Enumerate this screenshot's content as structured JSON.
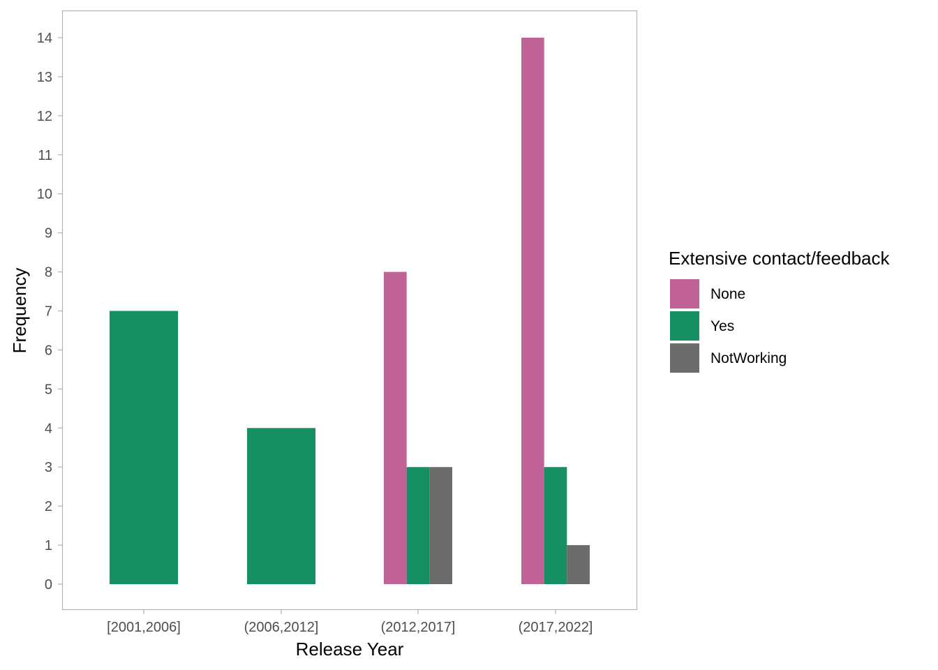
{
  "chart_data": {
    "type": "bar",
    "title": "",
    "xlabel": "Release Year",
    "ylabel": "Frequency",
    "categories": [
      "[2001,2006]",
      "(2006,2012]",
      "(2012,2017]",
      "(2017,2022]"
    ],
    "series": [
      {
        "name": "None",
        "color": "#C06296",
        "values": [
          null,
          null,
          8,
          14
        ]
      },
      {
        "name": "Yes",
        "color": "#168F62",
        "values": [
          7,
          4,
          3,
          3
        ]
      },
      {
        "name": "NotWorking",
        "color": "#6C6C6C",
        "values": [
          null,
          null,
          3,
          1
        ]
      }
    ],
    "ylim": [
      0,
      14
    ],
    "yticks": [
      0,
      1,
      2,
      3,
      4,
      5,
      6,
      7,
      8,
      9,
      10,
      11,
      12,
      13,
      14
    ],
    "legend_title": "Extensive contact/feedback",
    "legend_position": "right",
    "grid": false
  }
}
